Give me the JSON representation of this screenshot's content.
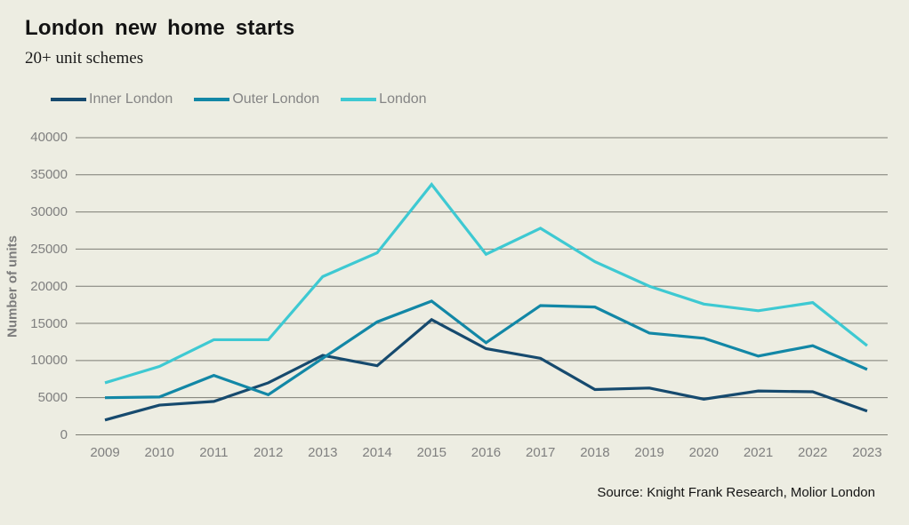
{
  "header": {
    "title": "London new home starts",
    "subtitle": "20+ unit schemes"
  },
  "legend": [
    {
      "label": "Inner London",
      "color": "#164a6e"
    },
    {
      "label": "Outer London",
      "color": "#1287a6"
    },
    {
      "label": "London",
      "color": "#3ec9d2"
    }
  ],
  "chart_data": {
    "type": "line",
    "x": [
      2009,
      2010,
      2011,
      2012,
      2013,
      2014,
      2015,
      2016,
      2017,
      2018,
      2019,
      2020,
      2021,
      2022,
      2023
    ],
    "series": [
      {
        "name": "Inner London",
        "color": "#164a6e",
        "values": [
          2000,
          4000,
          4500,
          7000,
          10700,
          9300,
          15500,
          11600,
          10300,
          6100,
          6300,
          4800,
          5900,
          5800,
          3200
        ]
      },
      {
        "name": "Outer London",
        "color": "#1287a6",
        "values": [
          5000,
          5100,
          8000,
          5400,
          10300,
          15200,
          18000,
          12400,
          17400,
          17200,
          13700,
          13000,
          10600,
          12000,
          8800
        ]
      },
      {
        "name": "London",
        "color": "#3ec9d2",
        "values": [
          7000,
          9200,
          12800,
          12800,
          21300,
          24500,
          33700,
          24300,
          27800,
          23300,
          20000,
          17600,
          16700,
          17800,
          12000
        ]
      }
    ],
    "title": "London new home starts",
    "subtitle": "20+ unit schemes",
    "xlabel": "",
    "ylabel": "Number of units",
    "ylim": [
      0,
      40000
    ],
    "ytick_step": 5000,
    "yticks": [
      0,
      5000,
      10000,
      15000,
      20000,
      25000,
      30000,
      35000,
      40000
    ],
    "grid": true,
    "legend_position": "top-left"
  },
  "footer": {
    "source": "Source: Knight Frank Research, Molior London"
  },
  "colors": {
    "background": "#edede2",
    "gridline": "#7d7d74",
    "tick_text": "#7f7f7f",
    "legend_text": "#858585",
    "title_text": "#131313"
  }
}
